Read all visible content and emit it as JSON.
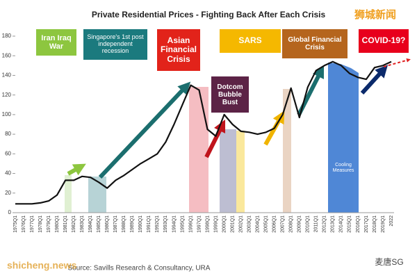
{
  "chart_data": {
    "type": "line",
    "title": "Private Residential Prices - Fighting Back After Each Crisis",
    "categories": [
      "1975Q1",
      "1976Q1",
      "1977Q1",
      "1978Q1",
      "1979Q1",
      "1980Q1",
      "1981Q1",
      "1982Q1",
      "1983Q1",
      "1984Q1",
      "1985Q1",
      "1986Q1",
      "1987Q1",
      "1988Q1",
      "1989Q1",
      "1990Q1",
      "1991Q1",
      "1992Q1",
      "1993Q1",
      "1994Q1",
      "1995Q1",
      "1996Q1",
      "1997Q1",
      "1998Q1",
      "1999Q1",
      "2000Q1",
      "2001Q1",
      "2002Q1",
      "2003Q1",
      "2004Q1",
      "2005Q1",
      "2006Q1",
      "2007Q1",
      "2008Q1",
      "2009Q1",
      "2010Q1",
      "2011Q1",
      "2012Q1",
      "2013Q1",
      "2014Q1",
      "2015Q1",
      "2016Q1",
      "2017Q1",
      "2018Q1",
      "2019Q1",
      "2022"
    ],
    "values": [
      9,
      9,
      9,
      10,
      12,
      18,
      33,
      33,
      37,
      36,
      31,
      25,
      33,
      38,
      44,
      50,
      55,
      60,
      72,
      90,
      110,
      130,
      125,
      85,
      78,
      100,
      90,
      83,
      82,
      80,
      82,
      86,
      100,
      127,
      97,
      128,
      145,
      150,
      154,
      150,
      142,
      138,
      136,
      148,
      150,
      154
    ],
    "color": "#111111",
    "ylim": [
      0,
      180
    ],
    "yticks": [
      0,
      20,
      40,
      60,
      80,
      100,
      120,
      140,
      160,
      180
    ],
    "annotations": {
      "iran_iraq": "Iran Iraq War",
      "recession": "Singapore's 1st post independent recession",
      "asian": "Asian Financial Crisis",
      "sars": "SARS",
      "gfc": "Global Financial Crisis",
      "covid": "COVID-19?",
      "dotcom": "Dotcom Bubble Bust",
      "cooling": "Cooling Measures"
    },
    "source": "Source: Savills Research & Consultancy, URA"
  },
  "watermarks": {
    "top": "狮城新闻",
    "bottom_left": "shicheng.news",
    "bottom_right": "麦唐SG"
  }
}
